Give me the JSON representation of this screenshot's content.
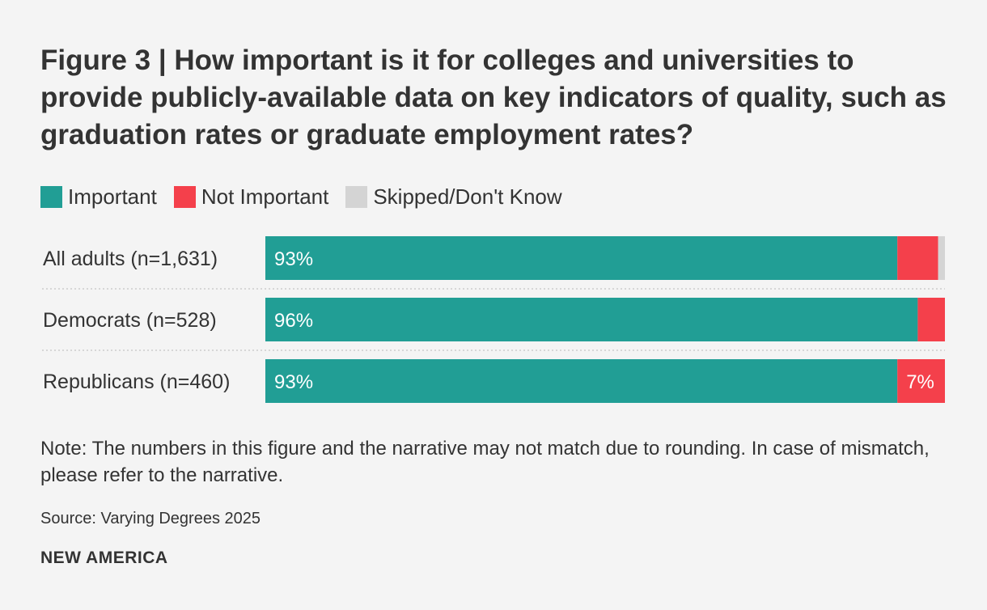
{
  "chart_data": {
    "type": "bar",
    "orientation": "horizontal",
    "stacked": true,
    "title": "Figure 3 | How important is it for colleges and universities to provide publicly-available data on key indicators of quality, such as graduation rates or graduate employment rates?",
    "categories": [
      "All adults (n=1,631)",
      "Democrats (n=528)",
      "Republicans (n=460)"
    ],
    "series": [
      {
        "name": "Important",
        "color": "#219e95",
        "values": [
          93,
          96,
          93
        ],
        "labels": [
          "93%",
          "96%",
          "93%"
        ]
      },
      {
        "name": "Not Important",
        "color": "#f4404b",
        "values": [
          6,
          4,
          7
        ],
        "labels": [
          "",
          "",
          "7%"
        ]
      },
      {
        "name": "Skipped/Don't Know",
        "color": "#d4d4d4",
        "values": [
          1,
          0,
          0
        ],
        "labels": [
          "",
          "",
          ""
        ]
      }
    ],
    "xlim": [
      0,
      100
    ],
    "xlabel": "",
    "ylabel": "",
    "legend_position": "top-left"
  },
  "note": "Note: The numbers in this figure and the narrative may not match due to rounding. In case of mismatch, please refer to the narrative.",
  "source": "Source: Varying Degrees 2025",
  "brand": "NEW AMERICA",
  "colors": {
    "background": "#f4f4f4",
    "text": "#333333",
    "label_on_bar": "#ffffff",
    "divider": "#cccccc"
  }
}
